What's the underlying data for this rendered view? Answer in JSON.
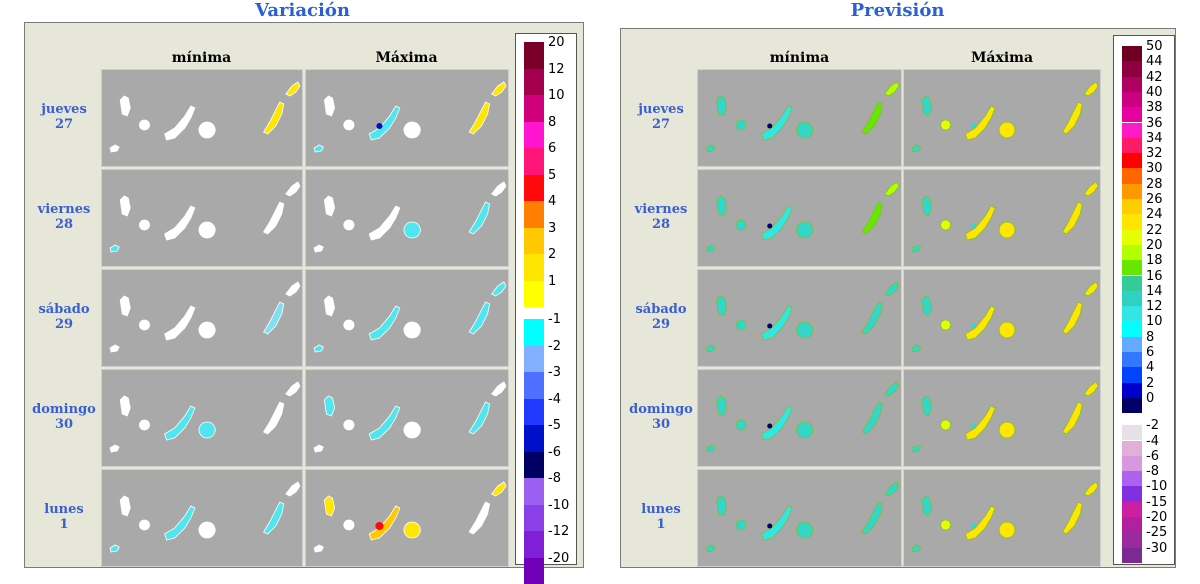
{
  "panels": [
    {
      "title": "Variación",
      "col_headers": [
        "mínima",
        "Máxima"
      ],
      "legend": {
        "items": [
          {
            "label": "20",
            "color": "#7a0029"
          },
          {
            "label": "12",
            "color": "#a3004f"
          },
          {
            "label": "10",
            "color": "#d1007a"
          },
          {
            "label": "8",
            "color": "#ff14d0"
          },
          {
            "label": "6",
            "color": "#ff1478"
          },
          {
            "label": "5",
            "color": "#ff0a0a"
          },
          {
            "label": "4",
            "color": "#ff8000"
          },
          {
            "label": "3",
            "color": "#ffc800"
          },
          {
            "label": "2",
            "color": "#ffe600"
          },
          {
            "label": "1",
            "color": "#ffff00"
          },
          {
            "label": "",
            "color": "#ffffff"
          },
          {
            "label": "-1",
            "color": "#00ffff"
          },
          {
            "label": "-2",
            "color": "#80b0ff"
          },
          {
            "label": "-3",
            "color": "#4f6fff"
          },
          {
            "label": "-4",
            "color": "#2038ff"
          },
          {
            "label": "-5",
            "color": "#0010c8"
          },
          {
            "label": "-6",
            "color": "#000064"
          },
          {
            "label": "-8",
            "color": "#9c60f0"
          },
          {
            "label": "-10",
            "color": "#8a40e6"
          },
          {
            "label": "-12",
            "color": "#7f20d8"
          },
          {
            "label": "-20",
            "color": "#7000b8"
          }
        ]
      }
    },
    {
      "title": "Previsión",
      "col_headers": [
        "mínima",
        "Máxima"
      ],
      "legend": {
        "items": [
          {
            "label": "50",
            "color": "#6d0020"
          },
          {
            "label": "44",
            "color": "#8f0040"
          },
          {
            "label": "42",
            "color": "#ad0060"
          },
          {
            "label": "40",
            "color": "#cc0080"
          },
          {
            "label": "38",
            "color": "#e600a0"
          },
          {
            "label": "36",
            "color": "#ff1ac8"
          },
          {
            "label": "34",
            "color": "#ff1a66"
          },
          {
            "label": "32",
            "color": "#ff0000"
          },
          {
            "label": "30",
            "color": "#ff6600"
          },
          {
            "label": "28",
            "color": "#ff9900"
          },
          {
            "label": "26",
            "color": "#ffcc00"
          },
          {
            "label": "24",
            "color": "#ffe600"
          },
          {
            "label": "22",
            "color": "#e6ff00"
          },
          {
            "label": "20",
            "color": "#b3ff00"
          },
          {
            "label": "18",
            "color": "#66e600"
          },
          {
            "label": "16",
            "color": "#33cc99"
          },
          {
            "label": "14",
            "color": "#2fd1c2"
          },
          {
            "label": "12",
            "color": "#33e6e6"
          },
          {
            "label": "10",
            "color": "#00ffff"
          },
          {
            "label": "8",
            "color": "#66aaff"
          },
          {
            "label": "6",
            "color": "#3377ff"
          },
          {
            "label": "4",
            "color": "#0044ff"
          },
          {
            "label": "2",
            "color": "#0000cc"
          },
          {
            "label": "0",
            "color": "#000066"
          },
          {
            "label": "",
            "color": "#ffffff"
          },
          {
            "label": "-2",
            "color": "#e8e0e8"
          },
          {
            "label": "-4",
            "color": "#e0b0d8"
          },
          {
            "label": "-6",
            "color": "#d898e0"
          },
          {
            "label": "-8",
            "color": "#b060f0"
          },
          {
            "label": "-10",
            "color": "#8030e0"
          },
          {
            "label": "-15",
            "color": "#cc20a0"
          },
          {
            "label": "-20",
            "color": "#b020a0"
          },
          {
            "label": "-25",
            "color": "#9a2aa0"
          },
          {
            "label": "-30",
            "color": "#7a2a90"
          }
        ]
      }
    }
  ],
  "days": [
    {
      "name": "jueves",
      "num": "27"
    },
    {
      "name": "viernes",
      "num": "28"
    },
    {
      "name": "sábado",
      "num": "29"
    },
    {
      "name": "domingo",
      "num": "30"
    },
    {
      "name": "lunes",
      "num": "1"
    }
  ]
}
